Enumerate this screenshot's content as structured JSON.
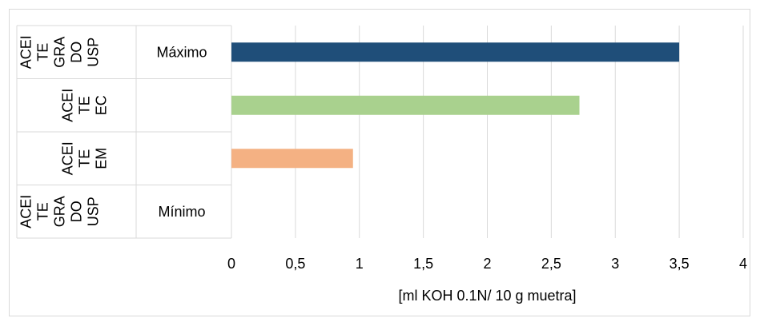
{
  "chart_data": {
    "type": "bar",
    "orientation": "horizontal",
    "categories": [
      {
        "group": "ACEITE GRADO USP",
        "label": "Máximo",
        "value": 3.5,
        "color": "#1f4e79"
      },
      {
        "group": "ACEITE EC",
        "label": "",
        "value": 2.72,
        "color": "#a9d18e"
      },
      {
        "group": "ACEITE EM",
        "label": "",
        "value": 0.95,
        "color": "#f4b183"
      },
      {
        "group": "ACEITE GRADO USP",
        "label": "Mínimo",
        "value": 0,
        "color": "#1f4e79"
      }
    ],
    "group_label_lines": [
      [
        "ACEI",
        "TE",
        "GRA",
        "DO",
        "USP"
      ],
      [
        "ACEI",
        "TE",
        "EC"
      ],
      [
        "ACEI",
        "TE",
        "EM"
      ],
      [
        "ACEI",
        "TE",
        "GRA",
        "DO",
        "USP"
      ]
    ],
    "xlim": [
      0,
      4
    ],
    "xticks": [
      "0",
      "0,5",
      "1",
      "1,5",
      "2",
      "2,5",
      "3",
      "3,5",
      "4"
    ],
    "xlabel": "[ml KOH 0.1N/ 10 g muetra]",
    "grid": true
  }
}
